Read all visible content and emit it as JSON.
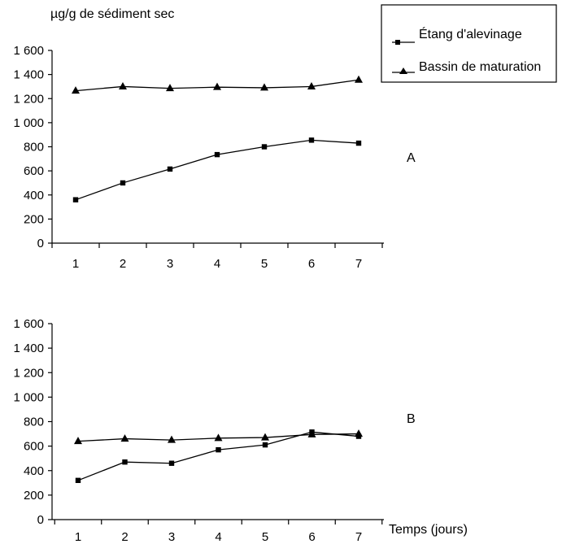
{
  "unit_label": "µg/g de sédiment sec",
  "legend": {
    "entries": [
      {
        "label": "Étang d'alevinage",
        "marker": "square"
      },
      {
        "label": "Bassin de maturation",
        "marker": "triangle"
      }
    ],
    "placement": "top-right"
  },
  "x_axis_label": "Temps (jours)",
  "chart_data": [
    {
      "type": "line",
      "panel_label": "A",
      "title": "",
      "ylabel": "µg/g de sédiment sec",
      "xlabel": "",
      "x": [
        1,
        2,
        3,
        4,
        5,
        6,
        7
      ],
      "ylim": [
        0,
        1600
      ],
      "yticks": [
        0,
        200,
        400,
        600,
        800,
        1000,
        1200,
        1400,
        1600
      ],
      "ytick_labels": [
        "0",
        "200",
        "400",
        "600",
        "800",
        "1 000",
        "1 200",
        "1 400",
        "1 600"
      ],
      "grid": false,
      "series": [
        {
          "name": "Étang d'alevinage",
          "marker": "square",
          "values": [
            360,
            500,
            615,
            735,
            800,
            855,
            830
          ]
        },
        {
          "name": "Bassin de maturation",
          "marker": "triangle",
          "values": [
            1265,
            1300,
            1285,
            1295,
            1290,
            1300,
            1355
          ]
        }
      ]
    },
    {
      "type": "line",
      "panel_label": "B",
      "title": "",
      "ylabel": "",
      "xlabel": "Temps (jours)",
      "x": [
        1,
        2,
        3,
        4,
        5,
        6,
        7
      ],
      "ylim": [
        0,
        1600
      ],
      "yticks": [
        0,
        200,
        400,
        600,
        800,
        1000,
        1200,
        1400,
        1600
      ],
      "ytick_labels": [
        "0",
        "200",
        "400",
        "600",
        "800",
        "1 000",
        "1 200",
        "1 400",
        "1 600"
      ],
      "grid": false,
      "series": [
        {
          "name": "Étang d'alevinage",
          "marker": "square",
          "values": [
            320,
            470,
            460,
            570,
            610,
            715,
            680
          ]
        },
        {
          "name": "Bassin de maturation",
          "marker": "triangle",
          "values": [
            640,
            660,
            650,
            665,
            670,
            695,
            700
          ]
        }
      ]
    }
  ],
  "colors": {
    "ink": "#000000",
    "background": "#ffffff"
  }
}
